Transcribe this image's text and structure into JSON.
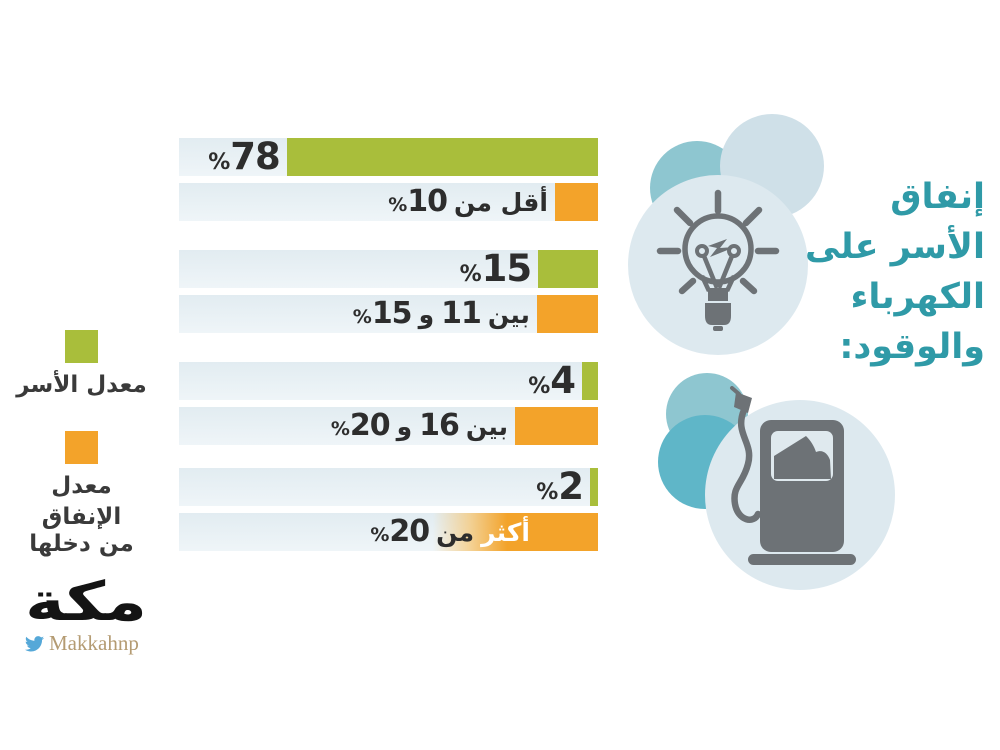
{
  "title": {
    "text": "إنفاق الأسر على الكهرباء والوقود:",
    "lines": [
      "إنفاق",
      "الأسر على",
      "الكهرباء",
      "والوقود:"
    ],
    "color": "#2f9aa7"
  },
  "legend": {
    "green_label": "معدل الأسر",
    "orange_label_line1": "معدل الإنفاق",
    "orange_label_line2": "من دخلها"
  },
  "colors": {
    "green": "#a9be3b",
    "orange": "#f3a32a",
    "track": "#e6eff4",
    "text_dark": "#2d2d2d",
    "title_teal": "#2f9aa7",
    "icon_gray": "#6d7276",
    "circle_light": "#dde9ef",
    "circle_pale": "#cfe0e8",
    "circle_teal": "#8ec6d0",
    "circle_teal_dark": "#5fb6c8",
    "twitter_blue": "#55a8d8",
    "handle_tan": "#b49b72"
  },
  "chart_data": {
    "type": "bar",
    "orientation": "horizontal_rtl",
    "unit": "%",
    "legend_position": "left",
    "series_names": [
      "معدل الأسر",
      "معدل الإنفاق من دخلها"
    ],
    "rows": [
      {
        "household_pct": 78,
        "spending_range_text": "أقل من 10%",
        "spending_visual_pct": 10.8,
        "segments": [
          {
            "t": "أقل من",
            "k": "w"
          },
          {
            "t": "%10",
            "k": "n"
          }
        ]
      },
      {
        "household_pct": 15,
        "spending_range_text": "بين 11 و15%",
        "spending_visual_pct": 15.3,
        "segments": [
          {
            "t": "بين",
            "k": "w"
          },
          {
            "t": "11",
            "k": "n"
          },
          {
            "t": "و",
            "k": "w"
          },
          {
            "t": "%15",
            "k": "n"
          }
        ]
      },
      {
        "household_pct": 4,
        "spending_range_text": "بين 16 و20%",
        "spending_visual_pct": 20.8,
        "segments": [
          {
            "t": "بين",
            "k": "w"
          },
          {
            "t": "16",
            "k": "n"
          },
          {
            "t": "و",
            "k": "w"
          },
          {
            "t": "%20",
            "k": "n"
          }
        ]
      },
      {
        "household_pct": 2,
        "spending_range_text": "أكثر من 20%",
        "spending_visual_pct": 41.4,
        "segments": [
          {
            "t": "أكثر",
            "k": "w",
            "white": true
          },
          {
            "t": "من",
            "k": "w"
          },
          {
            "t": "%20",
            "k": "n"
          }
        ],
        "fade_left": true,
        "label_overlaps_bar": true
      }
    ]
  },
  "logo": {
    "brand": "مكة",
    "twitter_handle": "Makkahnp"
  }
}
